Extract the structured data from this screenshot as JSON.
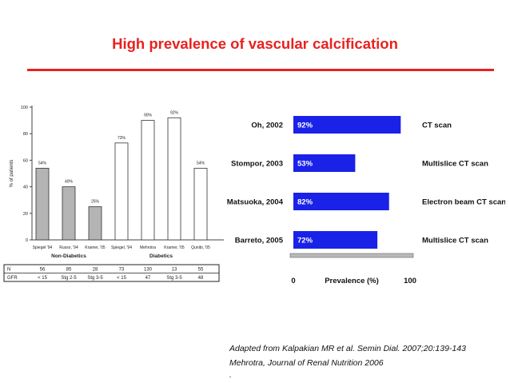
{
  "slide": {
    "title": "High prevalence of vascular calcification",
    "colors": {
      "title": "#e8221f",
      "rule": "#e8221f"
    }
  },
  "sources": [
    "Adapted from Kalpakian MR et al. Semin Dial. 2007;20:139-143",
    "Mehrotra, Journal of Renal Nutrition  2006",
    "."
  ],
  "chart_data": [
    {
      "type": "bar",
      "ylabel": "% of patients",
      "ylim": [
        0,
        100
      ],
      "yticks": [
        "0",
        "20",
        "40",
        "60",
        "80",
        "100"
      ],
      "grid": false,
      "categories": [
        "Spiegel '94",
        "Russo, '94",
        "Kramer, '05",
        "Spiegel, '94",
        "Mehrotra",
        "Kramer, '05",
        "Qunibi, '05"
      ],
      "values": [
        54,
        40,
        25,
        73,
        90,
        92,
        54
      ],
      "value_labels": [
        "54%",
        "40%",
        "25%",
        "73%",
        "90%",
        "92%",
        "54%"
      ],
      "bar_fills": [
        "#b4b4b4",
        "#b4b4b4",
        "#b4b4b4",
        "#ffffff",
        "#ffffff",
        "#ffffff",
        "#ffffff"
      ],
      "groups": [
        {
          "label": "Non-Diabetics",
          "from": 0,
          "to": 2
        },
        {
          "label": "Diabetics",
          "from": 3,
          "to": 6
        }
      ],
      "table": {
        "rows": [
          {
            "label": "N",
            "cells": [
              "56",
              "85",
              "28",
              "73",
              "130",
              "13",
              "55"
            ]
          },
          {
            "label": "GFR",
            "cells": [
              "< 15",
              "Stg 2-5",
              "Stg 3-5",
              "< 15",
              "47",
              "Stg 3-5",
              "48"
            ]
          }
        ]
      }
    },
    {
      "type": "bar",
      "orientation": "horizontal",
      "xlabel": "Prevalence (%)",
      "xlim": [
        0,
        100
      ],
      "xticks": [
        "0",
        "100"
      ],
      "grid": false,
      "bar_color": "#1a22e8",
      "categories": [
        "Oh, 2002",
        "Stompor, 2003",
        "Matsuoka, 2004",
        "Barreto, 2005"
      ],
      "values": [
        92,
        53,
        82,
        72
      ],
      "value_labels": [
        "92%",
        "53%",
        "82%",
        "72%"
      ],
      "methods": [
        "CT scan",
        "Multislice CT scan",
        "Electron beam CT scan",
        "Multislice CT scan"
      ]
    }
  ]
}
